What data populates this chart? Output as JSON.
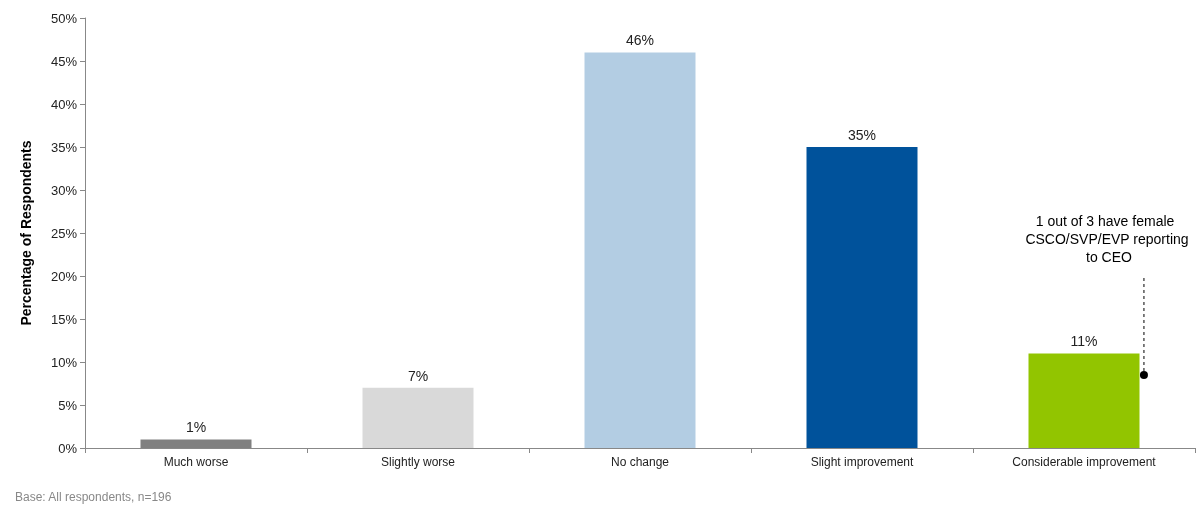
{
  "chart_data": {
    "type": "bar",
    "ylabel": "Percentage of Respondents",
    "categories": [
      "Much worse",
      "Slightly worse",
      "No change",
      "Slight improvement",
      "Considerable improvement"
    ],
    "values": [
      1,
      7,
      46,
      35,
      11
    ],
    "colors": [
      "#808080",
      "#d9d9d9",
      "#b3cde3",
      "#00529b",
      "#92c500"
    ],
    "value_labels": [
      "1%",
      "7%",
      "46%",
      "35%",
      "11%"
    ],
    "ylim": [
      0,
      50
    ],
    "yticks": [
      {
        "value": 0,
        "label": "0%"
      },
      {
        "value": 5,
        "label": "5%"
      },
      {
        "value": 10,
        "label": "10%"
      },
      {
        "value": 15,
        "label": "15%"
      },
      {
        "value": 20,
        "label": "20%"
      },
      {
        "value": 25,
        "label": "25%"
      },
      {
        "value": 30,
        "label": "30%"
      },
      {
        "value": 35,
        "label": "35%"
      },
      {
        "value": 40,
        "label": "40%"
      },
      {
        "value": 45,
        "label": "45%"
      },
      {
        "value": 50,
        "label": "50%"
      }
    ],
    "grid": false,
    "annotations": [
      "1 out of 3 have female CSCO/SVP/EVP reporting to CEO",
      "Base: All respondents, n=196"
    ]
  }
}
